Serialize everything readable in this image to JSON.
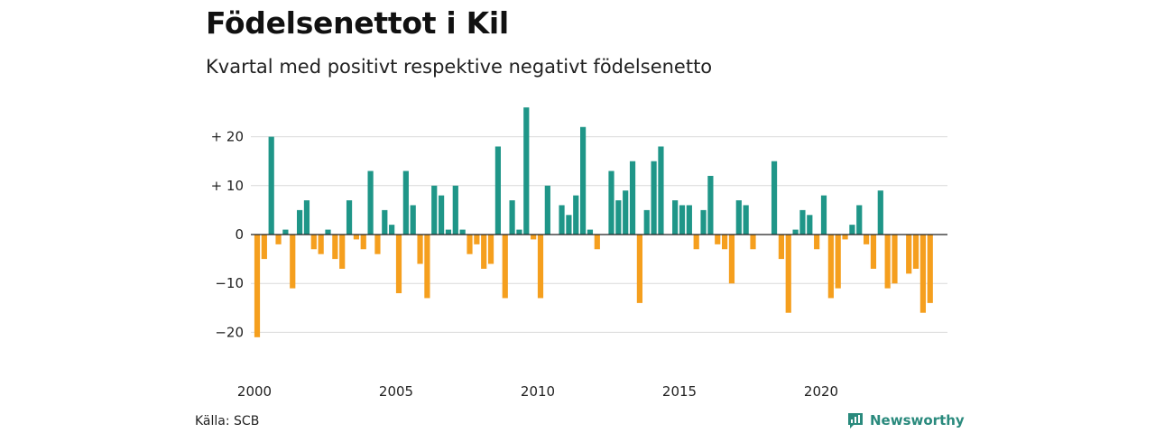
{
  "header": {
    "title": "Födelsenettot i Kil",
    "subtitle": "Kvartal med positivt respektive negativt födelsenetto"
  },
  "footer": {
    "source": "Källa: SCB",
    "brand": "Newsworthy",
    "brand_icon": "bar-chart-speech-bubble-icon"
  },
  "colors": {
    "positive": "#1f9688",
    "negative": "#f59f1e",
    "grid": "#d9d9d9",
    "zero_line": "#222222",
    "brand": "#2a8a7d"
  },
  "chart_data": {
    "type": "bar",
    "title": "Födelsenettot i Kil",
    "subtitle": "Kvartal med positivt respektive negativt födelsenetto",
    "xlabel": "",
    "ylabel": "",
    "ylim": [
      -25,
      27
    ],
    "grid": true,
    "x_start": "2000-Q1",
    "x_tick_labels": [
      "2000",
      "2005",
      "2010",
      "2015",
      "2020"
    ],
    "y_ticks": [
      20,
      10,
      0,
      -10,
      -20
    ],
    "y_tick_labels": [
      "+ 20",
      "+ 10",
      "0",
      "−10",
      "−20"
    ],
    "values": [
      -21,
      -5,
      20,
      -2,
      1,
      -11,
      5,
      7,
      -3,
      -4,
      1,
      -5,
      -7,
      7,
      -1,
      -3,
      13,
      -4,
      5,
      2,
      -12,
      13,
      6,
      -6,
      -13,
      10,
      8,
      1,
      10,
      1,
      -4,
      -2,
      -7,
      -6,
      18,
      -13,
      7,
      1,
      26,
      -1,
      -13,
      10,
      0,
      6,
      4,
      8,
      22,
      1,
      -3,
      0,
      13,
      7,
      9,
      15,
      -14,
      5,
      15,
      18,
      0,
      7,
      6,
      6,
      -3,
      5,
      12,
      -2,
      -3,
      -10,
      7,
      6,
      -3,
      0,
      0,
      15,
      -5,
      -16,
      1,
      5,
      4,
      -3,
      8,
      -13,
      -11,
      -1,
      2,
      6,
      -2,
      -7,
      9,
      -11,
      -10,
      0,
      -8,
      -7,
      -16,
      -14
    ]
  }
}
